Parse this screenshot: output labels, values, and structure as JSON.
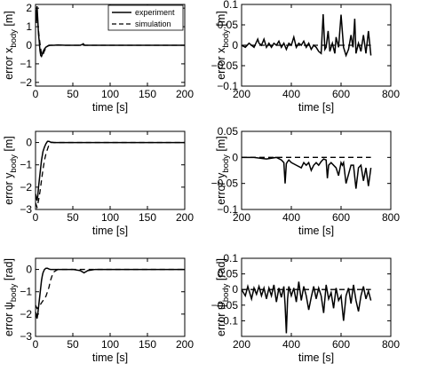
{
  "legend": {
    "experiment": "experiment",
    "simulation": "simulation"
  },
  "chart_data": [
    {
      "type": "line",
      "xlabel": "time [s]",
      "ylabel": "error x",
      "ylabel_sub": "body",
      "ylabel_unit": " [m]",
      "xlim": [
        0,
        200
      ],
      "ylim": [
        -2.2,
        2.2
      ],
      "xticks": [
        0,
        50,
        100,
        150,
        200
      ],
      "xtick_labels": [
        "0",
        "50",
        "100",
        "150",
        "200"
      ],
      "yticks": [
        -2,
        -1,
        0,
        1,
        2
      ],
      "ytick_labels": [
        "−2",
        "−1",
        "0",
        "1",
        "2"
      ],
      "legend": "top-right",
      "series": [
        {
          "name": "experiment",
          "style": "solid",
          "x": [
            0,
            1,
            2,
            3,
            4,
            5,
            6,
            7,
            8,
            9,
            10,
            12,
            14,
            16,
            18,
            20,
            25,
            30,
            40,
            50,
            60,
            63,
            64,
            65,
            66,
            70,
            80,
            100,
            120,
            150,
            200
          ],
          "y": [
            1.9,
            1.2,
            2.1,
            1.4,
            0.6,
            0.2,
            -0.3,
            -0.55,
            -0.6,
            -0.5,
            -0.35,
            -0.2,
            -0.1,
            -0.05,
            0,
            0,
            0,
            0.02,
            0,
            0,
            0,
            0.05,
            0.08,
            0.03,
            0,
            0,
            0,
            0,
            0,
            0,
            0
          ]
        },
        {
          "name": "simulation",
          "style": "dashed",
          "x": [
            0,
            2,
            3,
            4,
            5,
            6,
            7,
            8,
            9,
            10,
            12,
            14,
            16,
            20,
            30,
            200
          ],
          "y": [
            1.7,
            1.5,
            1.2,
            0.8,
            0.4,
            0.1,
            -0.2,
            -0.45,
            -0.55,
            -0.5,
            -0.3,
            -0.15,
            -0.05,
            0,
            0,
            0
          ]
        }
      ]
    },
    {
      "type": "line",
      "xlabel": "time [s]",
      "ylabel": "error x",
      "ylabel_sub": "body",
      "ylabel_unit": " [m]",
      "xlim": [
        200,
        800
      ],
      "ylim": [
        -0.1,
        0.1
      ],
      "xticks": [
        200,
        400,
        600,
        800
      ],
      "xtick_labels": [
        "200",
        "400",
        "600",
        "800"
      ],
      "yticks": [
        -0.1,
        -0.05,
        0,
        0.05,
        0.1
      ],
      "ytick_labels": [
        "−0.1",
        "−0.05",
        "0",
        "0.05",
        "0.1"
      ],
      "series": [
        {
          "name": "experiment",
          "style": "solid",
          "x": [
            200,
            215,
            230,
            250,
            265,
            270,
            280,
            290,
            300,
            310,
            320,
            330,
            340,
            350,
            360,
            370,
            380,
            390,
            400,
            410,
            420,
            430,
            440,
            450,
            460,
            470,
            480,
            490,
            500,
            510,
            520,
            528,
            535,
            540,
            548,
            555,
            565,
            575,
            580,
            590,
            600,
            610,
            620,
            630,
            640,
            648,
            655,
            660,
            670,
            680,
            690,
            700,
            710,
            720
          ],
          "y": [
            0,
            -0.005,
            0.005,
            -0.005,
            0.015,
            0.005,
            0,
            0.015,
            -0.005,
            0.005,
            -0.005,
            0.005,
            0,
            0.01,
            -0.005,
            0.005,
            -0.01,
            0.005,
            0,
            0.02,
            -0.005,
            0.005,
            0,
            0.01,
            -0.005,
            0.005,
            -0.01,
            0,
            -0.005,
            -0.015,
            -0.02,
            0.076,
            -0.01,
            -0.005,
            0.035,
            -0.015,
            0.005,
            -0.02,
            0.02,
            -0.005,
            0.075,
            -0.005,
            -0.025,
            -0.01,
            0.025,
            -0.005,
            0.065,
            -0.02,
            0.005,
            -0.015,
            0.025,
            -0.02,
            0.035,
            -0.025
          ]
        },
        {
          "name": "simulation",
          "style": "dashed",
          "x": [
            200,
            720
          ],
          "y": [
            0,
            0
          ]
        }
      ]
    },
    {
      "type": "line",
      "xlabel": "time [s]",
      "ylabel": "error y",
      "ylabel_sub": "body",
      "ylabel_unit": " [m]",
      "xlim": [
        0,
        200
      ],
      "ylim": [
        -3,
        0.5
      ],
      "xticks": [
        0,
        50,
        100,
        150,
        200
      ],
      "xtick_labels": [
        "0",
        "50",
        "100",
        "150",
        "200"
      ],
      "yticks": [
        -3,
        -2,
        -1,
        0
      ],
      "ytick_labels": [
        "−3",
        "−2",
        "−1",
        "0"
      ],
      "series": [
        {
          "name": "experiment",
          "style": "solid",
          "x": [
            0,
            2,
            3,
            4,
            5,
            6,
            7,
            8,
            9,
            10,
            12,
            14,
            16,
            18,
            20,
            25,
            30,
            40,
            50,
            100,
            200
          ],
          "y": [
            -2.3,
            -2.6,
            -2.4,
            -2.0,
            -1.7,
            -1.4,
            -1.1,
            -0.8,
            -0.6,
            -0.4,
            -0.2,
            -0.05,
            0.05,
            0.05,
            0.02,
            0,
            0,
            0,
            0,
            0,
            0
          ]
        },
        {
          "name": "simulation",
          "style": "dashed",
          "x": [
            0,
            2,
            4,
            5,
            6,
            8,
            10,
            12,
            14,
            16,
            18,
            20,
            25,
            30,
            50,
            200
          ],
          "y": [
            -2.7,
            -2.9,
            -2.6,
            -2.4,
            -2.2,
            -1.7,
            -1.2,
            -0.8,
            -0.5,
            -0.3,
            -0.1,
            0,
            0,
            0,
            0,
            0
          ]
        }
      ]
    },
    {
      "type": "line",
      "xlabel": "time [s]",
      "ylabel": "error y",
      "ylabel_sub": "body",
      "ylabel_unit": " [m]",
      "xlim": [
        200,
        800
      ],
      "ylim": [
        -0.1,
        0.05
      ],
      "xticks": [
        200,
        400,
        600,
        800
      ],
      "xtick_labels": [
        "200",
        "400",
        "600",
        "800"
      ],
      "yticks": [
        -0.1,
        -0.05,
        0,
        0.05
      ],
      "ytick_labels": [
        "−0.1",
        "−0.05",
        "0",
        "0.05"
      ],
      "series": [
        {
          "name": "experiment",
          "style": "solid",
          "x": [
            200,
            250,
            300,
            340,
            360,
            370,
            375,
            380,
            385,
            390,
            400,
            420,
            440,
            450,
            460,
            470,
            480,
            490,
            500,
            510,
            520,
            530,
            540,
            545,
            550,
            560,
            580,
            590,
            600,
            605,
            610,
            620,
            640,
            650,
            660,
            670,
            680,
            690,
            700,
            710,
            720
          ],
          "y": [
            0,
            0,
            -0.003,
            0,
            -0.005,
            -0.01,
            -0.05,
            -0.012,
            -0.008,
            -0.005,
            -0.01,
            -0.015,
            -0.02,
            -0.01,
            -0.015,
            -0.01,
            -0.025,
            -0.015,
            -0.01,
            -0.015,
            -0.008,
            -0.003,
            -0.005,
            -0.04,
            -0.015,
            -0.01,
            -0.02,
            -0.035,
            -0.01,
            -0.015,
            -0.01,
            -0.05,
            -0.015,
            -0.015,
            -0.06,
            -0.02,
            -0.015,
            -0.045,
            -0.02,
            -0.055,
            -0.02
          ]
        },
        {
          "name": "simulation",
          "style": "dashed",
          "x": [
            200,
            720
          ],
          "y": [
            0,
            0
          ]
        }
      ]
    },
    {
      "type": "line",
      "xlabel": "time [s]",
      "ylabel": "error ψ",
      "ylabel_sub": "body",
      "ylabel_unit": " [rad]",
      "xlim": [
        0,
        200
      ],
      "ylim": [
        -3,
        0.5
      ],
      "xticks": [
        0,
        50,
        100,
        150,
        200
      ],
      "xtick_labels": [
        "0",
        "50",
        "100",
        "150",
        "200"
      ],
      "yticks": [
        -3,
        -2,
        -1,
        0
      ],
      "ytick_labels": [
        "−3",
        "−2",
        "−1",
        "0"
      ],
      "series": [
        {
          "name": "experiment",
          "style": "solid",
          "x": [
            0,
            2,
            3,
            4,
            5,
            6,
            7,
            8,
            9,
            10,
            12,
            14,
            16,
            18,
            20,
            25,
            30,
            40,
            50,
            60,
            65,
            70,
            80,
            100,
            200
          ],
          "y": [
            -1.9,
            -2.2,
            -2.0,
            -1.7,
            -1.4,
            -1.1,
            -0.8,
            -0.5,
            -0.3,
            -0.15,
            0,
            0.05,
            0.05,
            0.02,
            0,
            0,
            0,
            0,
            0,
            -0.05,
            -0.15,
            -0.05,
            0,
            0,
            0
          ]
        },
        {
          "name": "simulation",
          "style": "dashed",
          "x": [
            0,
            2,
            4,
            6,
            8,
            10,
            12,
            14,
            16,
            18,
            20,
            22,
            25,
            30,
            50,
            200
          ],
          "y": [
            -1.6,
            -1.75,
            -1.7,
            -1.6,
            -1.5,
            -1.4,
            -1.3,
            -1.2,
            -1.0,
            -0.8,
            -0.5,
            -0.3,
            -0.1,
            0,
            0,
            0
          ]
        }
      ]
    },
    {
      "type": "line",
      "xlabel": "time [s]",
      "ylabel": "error ψ",
      "ylabel_sub": "body",
      "ylabel_unit": " [rad]",
      "xlim": [
        200,
        800
      ],
      "ylim": [
        -0.15,
        0.1
      ],
      "xticks": [
        200,
        400,
        600,
        800
      ],
      "xtick_labels": [
        "200",
        "400",
        "600",
        "800"
      ],
      "yticks": [
        -0.1,
        -0.05,
        0,
        0.05,
        0.1
      ],
      "ytick_labels": [
        "−0.1",
        "−0.05",
        "0",
        "0.05",
        "0.1"
      ],
      "series": [
        {
          "name": "experiment",
          "style": "solid",
          "x": [
            200,
            215,
            225,
            240,
            250,
            260,
            270,
            280,
            290,
            300,
            310,
            320,
            330,
            340,
            350,
            360,
            370,
            375,
            380,
            385,
            390,
            400,
            410,
            420,
            430,
            440,
            450,
            460,
            470,
            480,
            490,
            500,
            510,
            520,
            530,
            540,
            550,
            560,
            570,
            580,
            590,
            600,
            610,
            620,
            630,
            640,
            650,
            660,
            670,
            680,
            690,
            700,
            710,
            720
          ],
          "y": [
            0,
            -0.02,
            0.01,
            -0.03,
            0.005,
            -0.015,
            0.01,
            -0.02,
            0.005,
            -0.03,
            0.005,
            -0.02,
            0.015,
            -0.04,
            0.005,
            -0.025,
            0.01,
            -0.05,
            -0.14,
            -0.03,
            0.01,
            -0.02,
            0.005,
            -0.04,
            0.025,
            -0.035,
            0.01,
            -0.02,
            -0.065,
            -0.025,
            0.01,
            -0.03,
            0.005,
            -0.02,
            -0.075,
            0.015,
            -0.03,
            -0.01,
            -0.06,
            0.005,
            -0.035,
            -0.02,
            -0.1,
            -0.02,
            0.005,
            -0.045,
            0.015,
            -0.035,
            -0.07,
            -0.02,
            0.01,
            -0.03,
            -0.005,
            -0.035
          ]
        },
        {
          "name": "simulation",
          "style": "dashed",
          "x": [
            200,
            720
          ],
          "y": [
            0,
            0
          ]
        }
      ]
    }
  ]
}
